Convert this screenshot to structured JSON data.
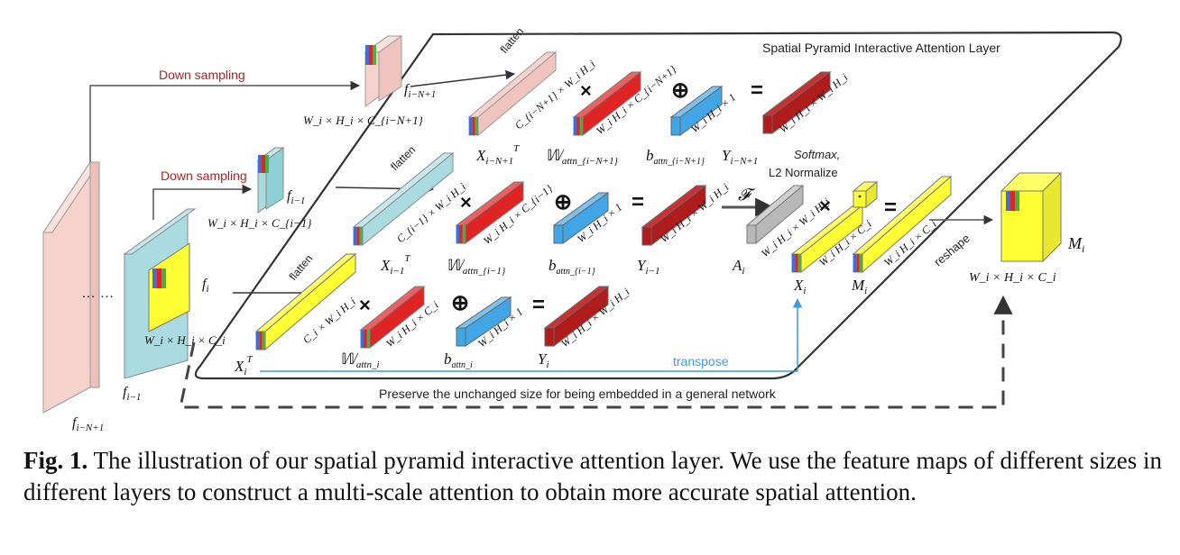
{
  "colors": {
    "pink": "#f6d2cc",
    "teal": "#a9dbe0",
    "yellow": "#ffff33",
    "red": "#e02424",
    "darkred": "#b01c1c",
    "blue": "#42a5e5",
    "gray": "#b8b8b8",
    "cyan_line": "#3d9be0",
    "down_sampling_text": "#b22222"
  },
  "layer_title": "Spatial Pyramid Interactive Attention Layer",
  "down_sampling": [
    "Down sampling",
    "Down sampling"
  ],
  "flatten": [
    "flatten",
    "flatten",
    "flatten"
  ],
  "operators": {
    "times": "×",
    "plus": "⊕",
    "equals": "="
  },
  "softmax": [
    "Softmax,",
    "L2 Normalize"
  ],
  "transpose": "transpose",
  "reshape": "reshape",
  "preserve": "Preserve the unchanged size for being embedded in a general network",
  "dots": "… …",
  "features": {
    "f_N1": "f",
    "f_N1_sub": "i−N+1",
    "f_i1": "f",
    "f_i1_sub": "i−1",
    "fp_N1": "f",
    "fp_N1_sub": "i−N+1",
    "fp_i1": "f",
    "fp_i1_sub": "i−1",
    "fp_i": "f",
    "fp_i_sub": "i"
  },
  "dims": {
    "top": "W_i × H_i × C_{i−N+1}",
    "mid": "W_i × H_i × C_{i−1}",
    "bot": "W_i × H_i × C_i",
    "out": "W_i × H_i × C_i"
  },
  "row_labels": {
    "X_N1": "X",
    "X_N1_sub": "i−N+1",
    "X_N1_sup": "T",
    "W_N1": "𝕎",
    "W_N1_sub": "attn_{i−N+1}",
    "b_N1": "b",
    "b_N1_sub": "attn_{i−N+1}",
    "Y_N1": "Y",
    "Y_N1_sub": "i−N+1",
    "X_i1": "X",
    "X_i1_sub": "i−1",
    "X_i1_sup": "T",
    "W_i1": "𝕎",
    "W_i1_sub": "attn_{i−1}",
    "b_i1": "b",
    "b_i1_sub": "attn_{i−1}",
    "Y_i1": "Y",
    "Y_i1_sub": "i−1",
    "X_i": "X",
    "X_i_sub": "i",
    "X_i_sup": "T",
    "W_i": "𝕎",
    "W_i_sub": "attn_i",
    "b_i": "b",
    "b_i_sub": "attn_i",
    "Y_i": "Y",
    "Y_i_sub": "i",
    "A": "A",
    "A_sub": "i",
    "Xi2": "X",
    "Xi2_sub": "i",
    "M": "M",
    "M_sub": "i",
    "Mp": "M",
    "Mp_sub": "i",
    "F": "𝓕"
  },
  "bar_labels": {
    "flat_top": "C_{i−N+1} × W_i H_i",
    "flat_mid": "C_{i−1} × W_i H_i",
    "flat_bot": "C_i × W_i H_i",
    "w_top": "W_i H_i × C_{i−N+1}",
    "w_mid": "W_i H_i × C_{i−1}",
    "w_bot": "W_i H_i × C_i",
    "b": "W_i H_i × 1",
    "y": "W_i H_i × W_i H_i",
    "a": "W_i H_i × W_i H_i",
    "x": "W_i H_i × C_i",
    "m": "W_i H_i × C_i"
  },
  "caption": {
    "fig": "Fig. 1.",
    "text": "The illustration of our spatial pyramid interactive attention layer. We use the feature maps of different sizes in different layers to construct a multi-scale attention to obtain more accurate spatial attention."
  }
}
